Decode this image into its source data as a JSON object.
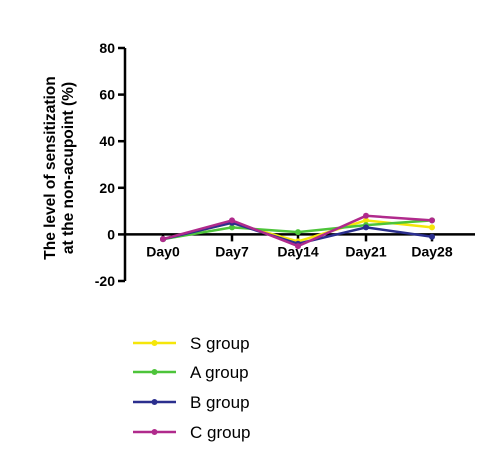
{
  "chart_data": {
    "type": "line",
    "x": [
      "Day0",
      "Day7",
      "Day14",
      "Day21",
      "Day28"
    ],
    "ylabel": [
      "The level of sensitization",
      "at the non-acupoint (%)"
    ],
    "ylim": [
      -20,
      80
    ],
    "yticks": [
      -20,
      0,
      20,
      40,
      60,
      80
    ],
    "grid": false,
    "legend_position": "bottom",
    "series": [
      {
        "name": "S group",
        "color": "#f5e60a",
        "values": [
          -2,
          5,
          -3,
          6,
          3
        ]
      },
      {
        "name": "A group",
        "color": "#4dc43a",
        "values": [
          -2,
          3,
          1,
          4,
          6
        ]
      },
      {
        "name": "B group",
        "color": "#2b2f8e",
        "values": [
          -2,
          5,
          -4,
          3,
          -1
        ]
      },
      {
        "name": "C group",
        "color": "#b02a8c",
        "values": [
          -2,
          6,
          -5,
          8,
          6
        ]
      }
    ]
  }
}
